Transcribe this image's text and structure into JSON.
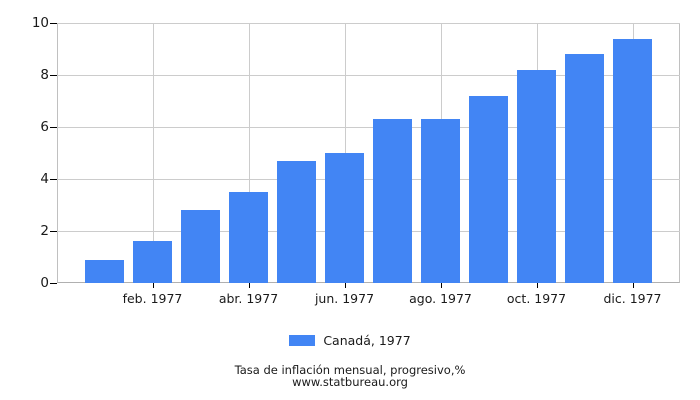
{
  "legend": {
    "label": "Canadá, 1977"
  },
  "footer": {
    "line1": "Tasa de inflación mensual, progresivo,%",
    "line2": "www.statbureau.org"
  },
  "chart_data": {
    "type": "bar",
    "title": "Tasa de inflación mensual, progresivo,%",
    "source_text": "www.statbureau.org",
    "series": [
      {
        "name": "Canadá, 1977",
        "values": [
          0.9,
          1.6,
          2.8,
          3.5,
          4.7,
          5.0,
          6.3,
          6.3,
          7.2,
          8.2,
          8.8,
          9.4
        ]
      }
    ],
    "x_ticks": [
      {
        "bar_index": 1,
        "label": "feb. 1977"
      },
      {
        "bar_index": 3,
        "label": "abr. 1977"
      },
      {
        "bar_index": 5,
        "label": "jun. 1977"
      },
      {
        "bar_index": 7,
        "label": "ago. 1977"
      },
      {
        "bar_index": 9,
        "label": "oct. 1977"
      },
      {
        "bar_index": 11,
        "label": "dic. 1977"
      }
    ],
    "y_ticks": [
      0,
      2,
      4,
      6,
      8,
      10
    ],
    "ylim": [
      0,
      10
    ],
    "grid": true,
    "legend_position": "bottom",
    "colors": {
      "bar": "#4285f4",
      "grid": "#cccccc",
      "axis": "#b8b8b8",
      "tick": "#000000",
      "text": "#1a1a1a"
    }
  }
}
